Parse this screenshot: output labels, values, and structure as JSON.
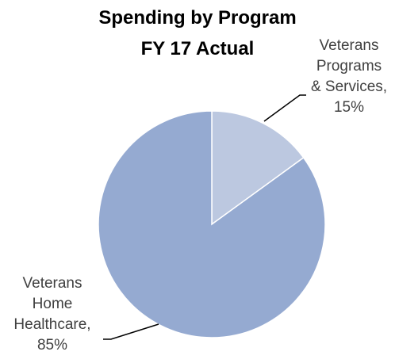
{
  "chart_data": {
    "type": "pie",
    "title": [
      "Spending by Program",
      "FY 17 Actual"
    ],
    "slices": [
      {
        "label_lines": [
          "Veterans",
          "Programs",
          "& Services,",
          "15%"
        ],
        "value": 15,
        "color": "#bcc8e0"
      },
      {
        "label_lines": [
          "Veterans",
          "Home",
          "Healthcare,",
          "85%"
        ],
        "value": 85,
        "color": "#95aad1"
      }
    ],
    "legend": "none",
    "label_position": "outside-with-leader-lines"
  }
}
